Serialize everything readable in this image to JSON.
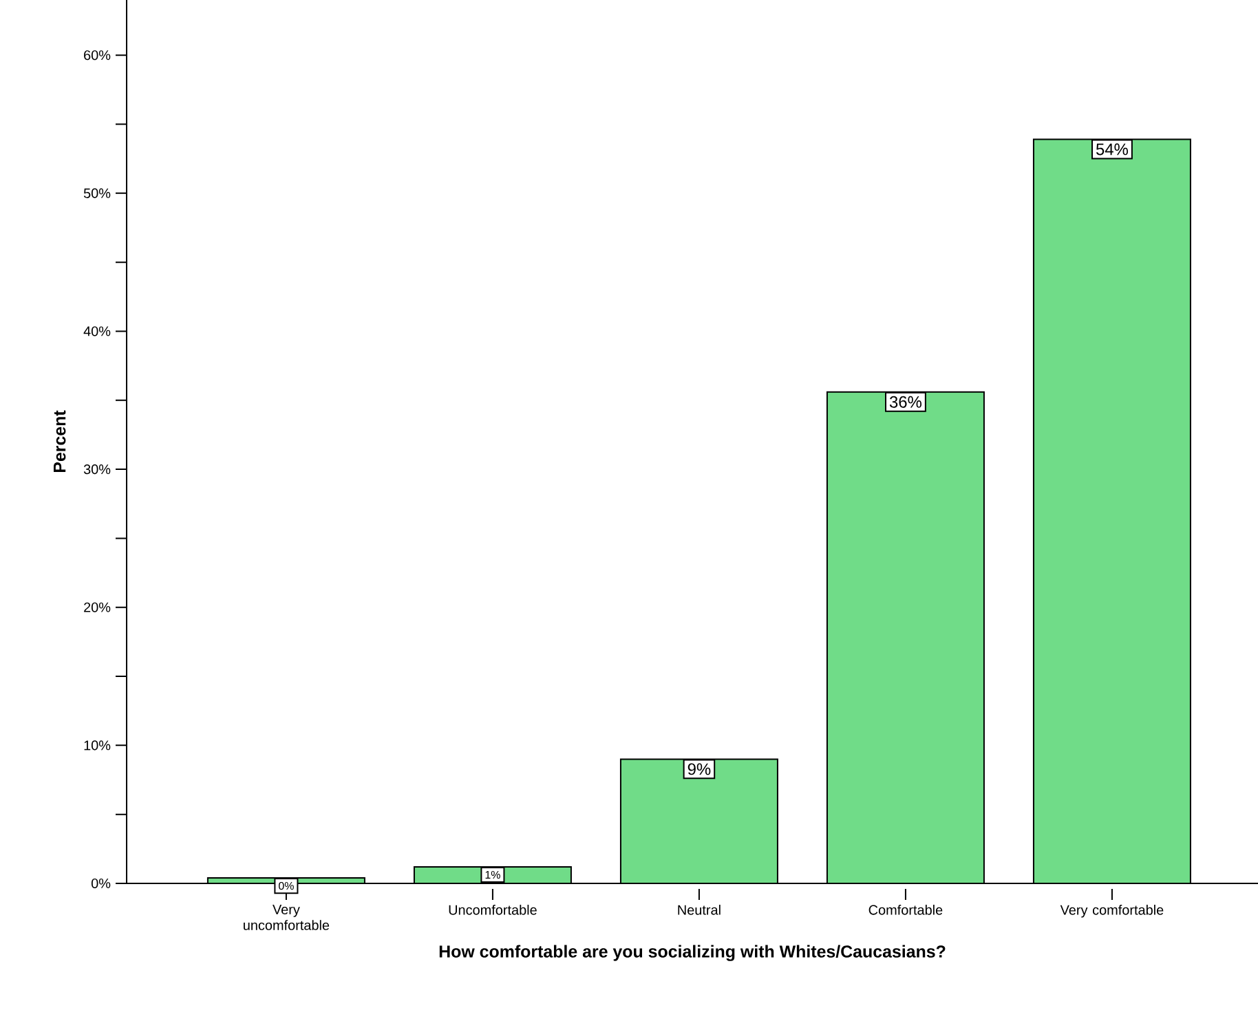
{
  "chart_data": {
    "type": "bar",
    "xlabel": "How comfortable are you socializing with Whites/Caucasians?",
    "ylabel": "Percent",
    "categories": [
      "Very uncomfortable",
      "Uncomfortable",
      "Neutral",
      "Comfortable",
      "Very comfortable"
    ],
    "values": [
      0.4,
      1.2,
      9.0,
      35.6,
      53.9
    ],
    "value_labels": [
      "0%",
      "1%",
      "9%",
      "36%",
      "54%"
    ],
    "color": "#70dc88",
    "ylim": [
      0,
      64
    ],
    "yticks": [
      {
        "value": 0,
        "label": "0%"
      },
      {
        "value": 5,
        "label": null
      },
      {
        "value": 10,
        "label": "10%"
      },
      {
        "value": 15,
        "label": null
      },
      {
        "value": 20,
        "label": "20%"
      },
      {
        "value": 25,
        "label": null
      },
      {
        "value": 30,
        "label": "30%"
      },
      {
        "value": 35,
        "label": null
      },
      {
        "value": 40,
        "label": "40%"
      },
      {
        "value": 45,
        "label": null
      },
      {
        "value": 50,
        "label": "50%"
      },
      {
        "value": 55,
        "label": null
      },
      {
        "value": 60,
        "label": "60%"
      }
    ]
  }
}
